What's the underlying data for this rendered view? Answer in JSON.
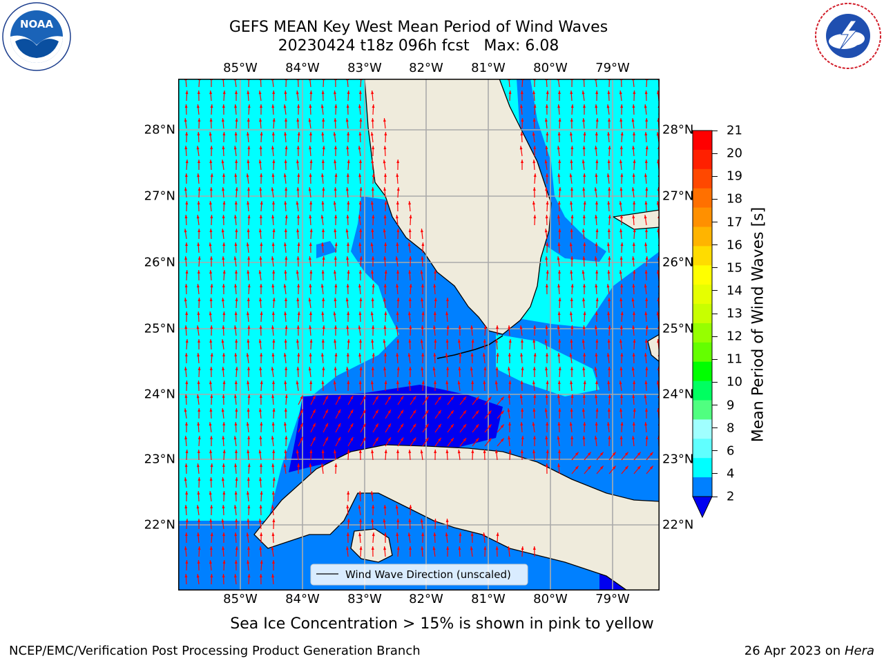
{
  "header": {
    "title_line1": "GEFS MEAN Key West Mean Period of Wind Waves",
    "title_line2": "20230424 t18z 096h fcst   Max: 6.08"
  },
  "logos": {
    "left": {
      "name": "noaa-logo",
      "text": "NOAA",
      "ring_text": "NATIONAL OCEANIC AND ATMOSPHERIC ADMINISTRATION · U.S. DEPARTMENT OF COMMERCE"
    },
    "right": {
      "name": "nws-logo",
      "ring_text": "NATIONAL WEATHER SERVICE"
    }
  },
  "map": {
    "lon_labels": [
      "85°W",
      "84°W",
      "83°W",
      "82°W",
      "81°W",
      "80°W",
      "79°W"
    ],
    "lat_labels": [
      "28°N",
      "27°N",
      "26°N",
      "25°N",
      "24°N",
      "23°N",
      "22°N"
    ],
    "legend_label": "Wind Wave Direction (unscaled)",
    "colors": {
      "land": "#efebdc",
      "water_4_6": "#00ffff",
      "water_2_4": "#0080ff",
      "water_lt2": "#0000f0",
      "arrows": "#ff0000",
      "grid": "#aaaaaa"
    }
  },
  "colorbar": {
    "label": "Mean Period of Wind Waves [s]",
    "ticks": [
      "21",
      "20",
      "19",
      "18",
      "17",
      "16",
      "15",
      "14",
      "13",
      "12",
      "11",
      "10",
      "9",
      "8",
      "6",
      "4",
      "2"
    ],
    "colors_top_to_bottom": [
      "#ff0000",
      "#ff2000",
      "#ff4800",
      "#ff7000",
      "#ff9000",
      "#ffb400",
      "#ffdc00",
      "#ffff00",
      "#e6ff00",
      "#c8ff00",
      "#96ff00",
      "#64ff00",
      "#00ff00",
      "#00ff60",
      "#50ff80",
      "#a0ffff",
      "#60ffff",
      "#00ffff",
      "#0080ff"
    ],
    "under_color": "#0000f0"
  },
  "notes": {
    "sea_ice": "Sea Ice Concentration > 15% is shown in pink to yellow"
  },
  "footer": {
    "left": "NCEP/EMC/Verification Post Processing Product Generation Branch",
    "right_date": "26 Apr 2023 on ",
    "right_host": "Hera"
  }
}
